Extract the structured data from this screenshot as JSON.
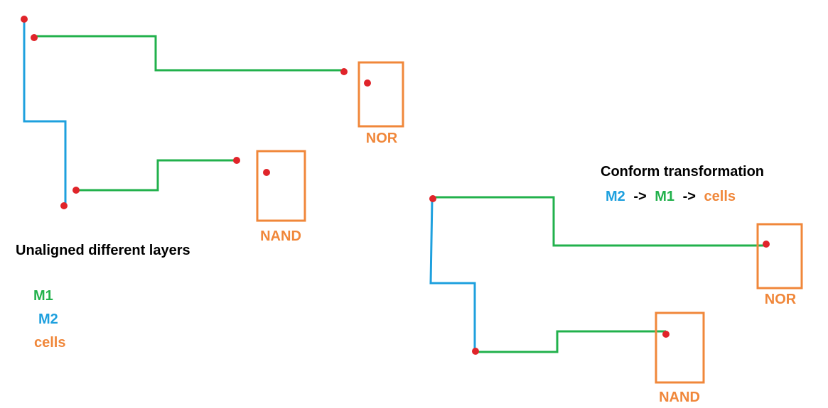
{
  "left_panel": {
    "nor_label": "NOR",
    "nand_label": "NAND",
    "title": "Unaligned different layers",
    "legend": {
      "m1": "M1",
      "m2": "M2",
      "cells": "cells"
    }
  },
  "right_panel": {
    "title": "Conform transformation",
    "order": {
      "m2": "M2",
      "arrow1": "->",
      "m1": "M1",
      "arrow2": "->",
      "cells": "cells"
    },
    "nor_label": "NOR",
    "nand_label": "NAND"
  },
  "colors": {
    "m1": "#22b14c",
    "m2": "#1ea0de",
    "cells": "#f0873a",
    "pin": "#e0242a"
  }
}
